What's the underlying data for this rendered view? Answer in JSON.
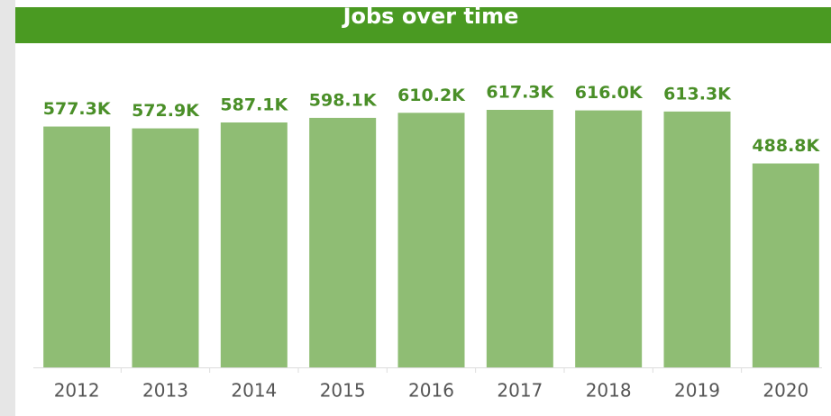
{
  "chart_data": {
    "type": "bar",
    "title": "Jobs over time",
    "categories": [
      "2012",
      "2013",
      "2014",
      "2015",
      "2016",
      "2017",
      "2018",
      "2019",
      "2020"
    ],
    "values": [
      577.3,
      572.9,
      587.1,
      598.1,
      610.2,
      617.3,
      616.0,
      613.3,
      488.8
    ],
    "value_labels": [
      "577.3K",
      "572.9K",
      "587.1K",
      "598.1K",
      "610.2K",
      "617.3K",
      "616.0K",
      "613.3K",
      "488.8K"
    ],
    "color": "#8fbd74"
  }
}
